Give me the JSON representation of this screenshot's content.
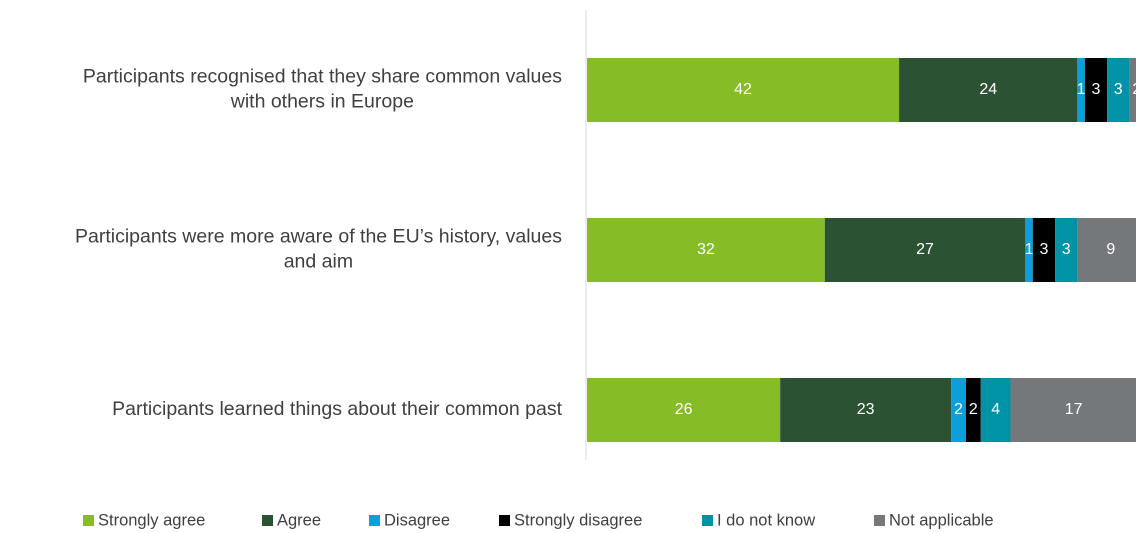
{
  "chart_data": {
    "type": "bar",
    "orientation": "horizontal",
    "stacked": true,
    "title": "",
    "xlabel": "",
    "ylabel": "",
    "legend_position": "bottom",
    "categories": [
      [
        "Participants recognised that they share common values",
        "with others in Europe"
      ],
      [
        "Participants were more aware of the EU’s history, values",
        "and aim"
      ],
      [
        "Participants learned things about their common past"
      ]
    ],
    "series": [
      {
        "name": "Strongly agree",
        "color": "#86bc25",
        "values": [
          42,
          32,
          26
        ]
      },
      {
        "name": "Agree",
        "color": "#2c5234",
        "values": [
          24,
          27,
          23
        ]
      },
      {
        "name": "Disagree",
        "color": "#0d9fdc",
        "values": [
          1,
          1,
          2
        ]
      },
      {
        "name": "Strongly disagree",
        "color": "#000000",
        "values": [
          3,
          3,
          2
        ]
      },
      {
        "name": "I do not know",
        "color": "#0093a8",
        "values": [
          3,
          3,
          4
        ]
      },
      {
        "name": "Not applicable",
        "color": "#75787b",
        "values": [
          2,
          9,
          17
        ]
      }
    ]
  }
}
